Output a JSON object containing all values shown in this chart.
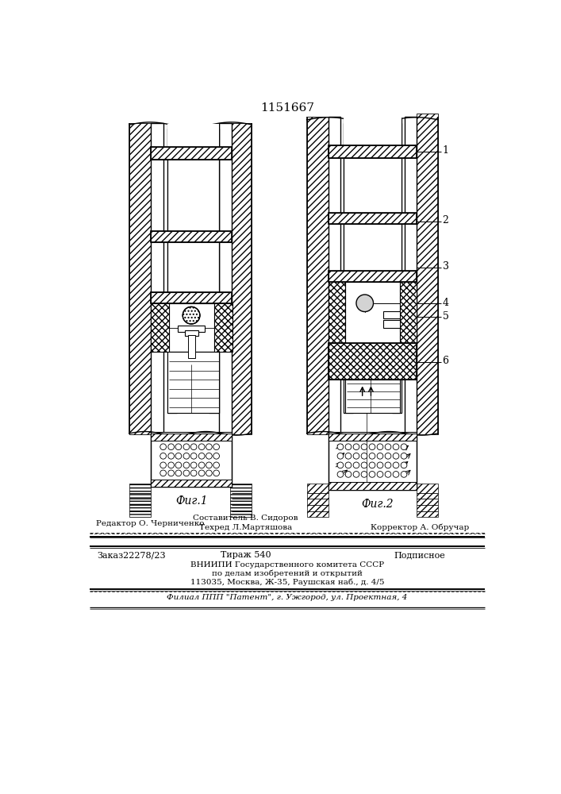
{
  "patent_number": "1151667",
  "fig1_label": "Фиг.1",
  "fig2_label": "Фиг.2",
  "bg_color": "#ffffff"
}
